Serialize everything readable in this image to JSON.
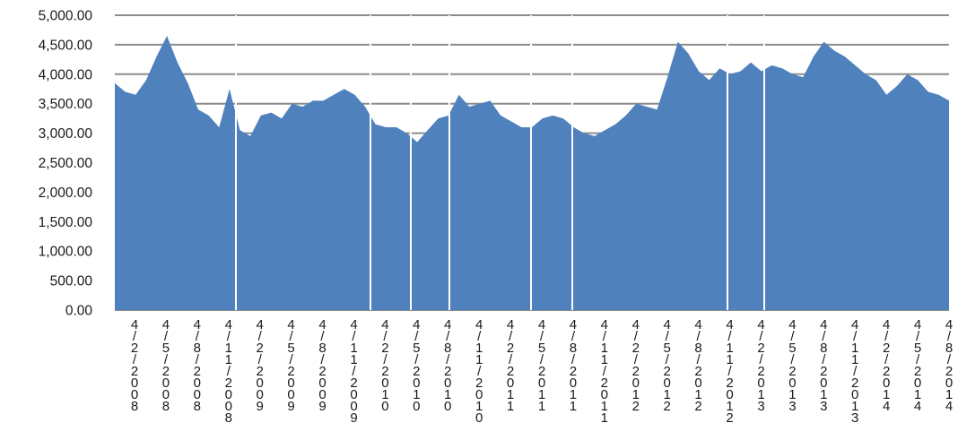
{
  "chart_data": {
    "type": "area",
    "title": "",
    "xlabel": "",
    "ylabel": "",
    "ylim": [
      0,
      5000
    ],
    "grid": true,
    "legend": "none",
    "color": "#4f81bd",
    "y_ticks": [
      "0.00",
      "500.00",
      "1,000.00",
      "1,500.00",
      "2,000.00",
      "2,500.00",
      "3,000.00",
      "3,500.00",
      "4,000.00",
      "4,500.00",
      "5,000.00"
    ],
    "x_tick_labels": [
      "4/2/2008",
      "4/5/2008",
      "4/8/2008",
      "4/11/2008",
      "4/2/2009",
      "4/5/2009",
      "4/8/2009",
      "4/11/2009",
      "4/2/2010",
      "4/5/2010",
      "4/8/2010",
      "4/11/2010",
      "4/2/2011",
      "4/5/2011",
      "4/8/2011",
      "4/11/2011",
      "4/2/2012",
      "4/5/2012",
      "4/8/2012",
      "4/11/2012",
      "4/2/2013",
      "4/5/2013",
      "4/8/2013",
      "4/11/2013",
      "4/2/2014",
      "4/5/2014",
      "4/8/2014"
    ],
    "x": [
      "2008-02",
      "2008-03",
      "2008-04",
      "2008-05",
      "2008-06",
      "2008-07",
      "2008-08",
      "2008-09",
      "2008-10",
      "2008-11",
      "2008-12",
      "2009-01",
      "2009-02",
      "2009-03",
      "2009-04",
      "2009-05",
      "2009-06",
      "2009-07",
      "2009-08",
      "2009-09",
      "2009-10",
      "2009-11",
      "2009-12",
      "2010-01",
      "2010-02",
      "2010-03",
      "2010-04",
      "2010-05",
      "2010-06",
      "2010-07",
      "2010-08",
      "2010-09",
      "2010-10",
      "2010-11",
      "2010-12",
      "2011-01",
      "2011-02",
      "2011-03",
      "2011-04",
      "2011-05",
      "2011-06",
      "2011-07",
      "2011-08",
      "2011-09",
      "2011-10",
      "2011-11",
      "2011-12",
      "2012-01",
      "2012-02",
      "2012-03",
      "2012-04",
      "2012-05",
      "2012-06",
      "2012-07",
      "2012-08",
      "2012-09",
      "2012-10",
      "2012-11",
      "2012-12",
      "2013-01",
      "2013-02",
      "2013-03",
      "2013-04",
      "2013-05",
      "2013-06",
      "2013-07",
      "2013-08",
      "2013-09",
      "2013-10",
      "2013-11",
      "2013-12",
      "2014-01",
      "2014-02",
      "2014-03",
      "2014-04",
      "2014-05",
      "2014-06",
      "2014-07",
      "2014-08",
      "2014-09",
      "2014-10"
    ],
    "values": [
      3850,
      3700,
      3650,
      3900,
      4300,
      4650,
      4200,
      3850,
      3400,
      3300,
      3100,
      3750,
      3050,
      2950,
      3300,
      3350,
      3250,
      3500,
      3450,
      3550,
      3550,
      3650,
      3750,
      3650,
      3450,
      3150,
      3100,
      3100,
      3000,
      2850,
      3050,
      3250,
      3300,
      3650,
      3450,
      3500,
      3550,
      3300,
      3200,
      3100,
      3100,
      3250,
      3300,
      3250,
      3100,
      3000,
      2950,
      3050,
      3150,
      3300,
      3500,
      3450,
      3400,
      3950,
      4550,
      4350,
      4050,
      3900,
      4100,
      4000,
      4050,
      4200,
      4050,
      4150,
      4100,
      4000,
      3950,
      4300,
      4550,
      4400,
      4300,
      4150,
      4000,
      3900,
      3650,
      3800,
      4000,
      3900,
      3700,
      3650,
      3550
    ]
  }
}
